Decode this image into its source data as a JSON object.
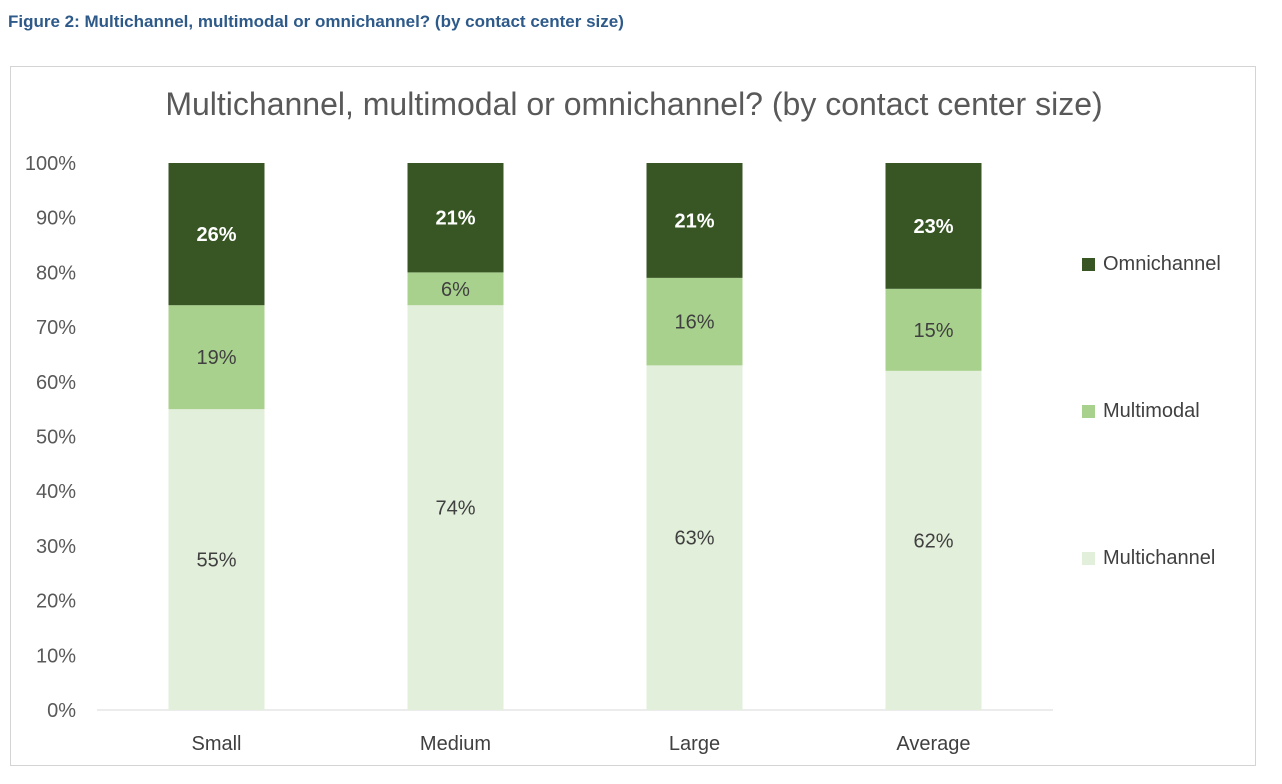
{
  "figure_caption": "Figure 2: Multichannel, multimodal or omnichannel? (by contact center size)",
  "chart_data": {
    "type": "bar",
    "stacked": true,
    "title": "Multichannel, multimodal or omnichannel? (by contact center size)",
    "xlabel": "",
    "ylabel": "",
    "ylim": [
      0,
      100
    ],
    "y_tick_labels": [
      "0%",
      "10%",
      "20%",
      "30%",
      "40%",
      "50%",
      "60%",
      "70%",
      "80%",
      "90%",
      "100%"
    ],
    "categories": [
      "Small",
      "Medium",
      "Large",
      "Average"
    ],
    "series": [
      {
        "name": "Multichannel",
        "color": "#e2efda",
        "label_color": "#404040",
        "values": [
          55,
          74,
          63,
          62
        ],
        "labels": [
          "55%",
          "74%",
          "63%",
          "62%"
        ]
      },
      {
        "name": "Multimodal",
        "color": "#a9d18e",
        "label_color": "#404040",
        "values": [
          19,
          6,
          16,
          15
        ],
        "labels": [
          "19%",
          "6%",
          "16%",
          "15%"
        ]
      },
      {
        "name": "Omnichannel",
        "color": "#375623",
        "label_color": "#ffffff",
        "values": [
          26,
          21,
          21,
          23
        ],
        "labels": [
          "26%",
          "21%",
          "21%",
          "23%"
        ]
      }
    ],
    "legend_position": "right",
    "grid": false
  }
}
